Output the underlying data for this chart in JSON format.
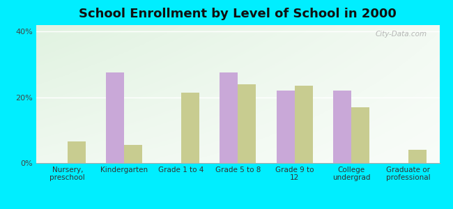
{
  "title": "School Enrollment by Level of School in 2000",
  "categories": [
    "Nursery,\npreschool",
    "Kindergarten",
    "Grade 1 to 4",
    "Grade 5 to 8",
    "Grade 9 to\n12",
    "College\nundergrad",
    "Graduate or\nprofessional"
  ],
  "loring_values": [
    0.0,
    27.5,
    0.0,
    27.5,
    22.0,
    22.0,
    0.0
  ],
  "maine_values": [
    6.5,
    5.5,
    21.5,
    24.0,
    23.5,
    17.0,
    4.0
  ],
  "loring_color": "#c9a8d8",
  "maine_color": "#c8cc90",
  "background_color": "#00eeff",
  "ylim": [
    0,
    42
  ],
  "yticks": [
    0,
    20,
    40
  ],
  "ytick_labels": [
    "0%",
    "20%",
    "40%"
  ],
  "bar_width": 0.32,
  "title_fontsize": 13,
  "tick_fontsize": 8,
  "legend_fontsize": 9.5,
  "watermark": "City-Data.com"
}
